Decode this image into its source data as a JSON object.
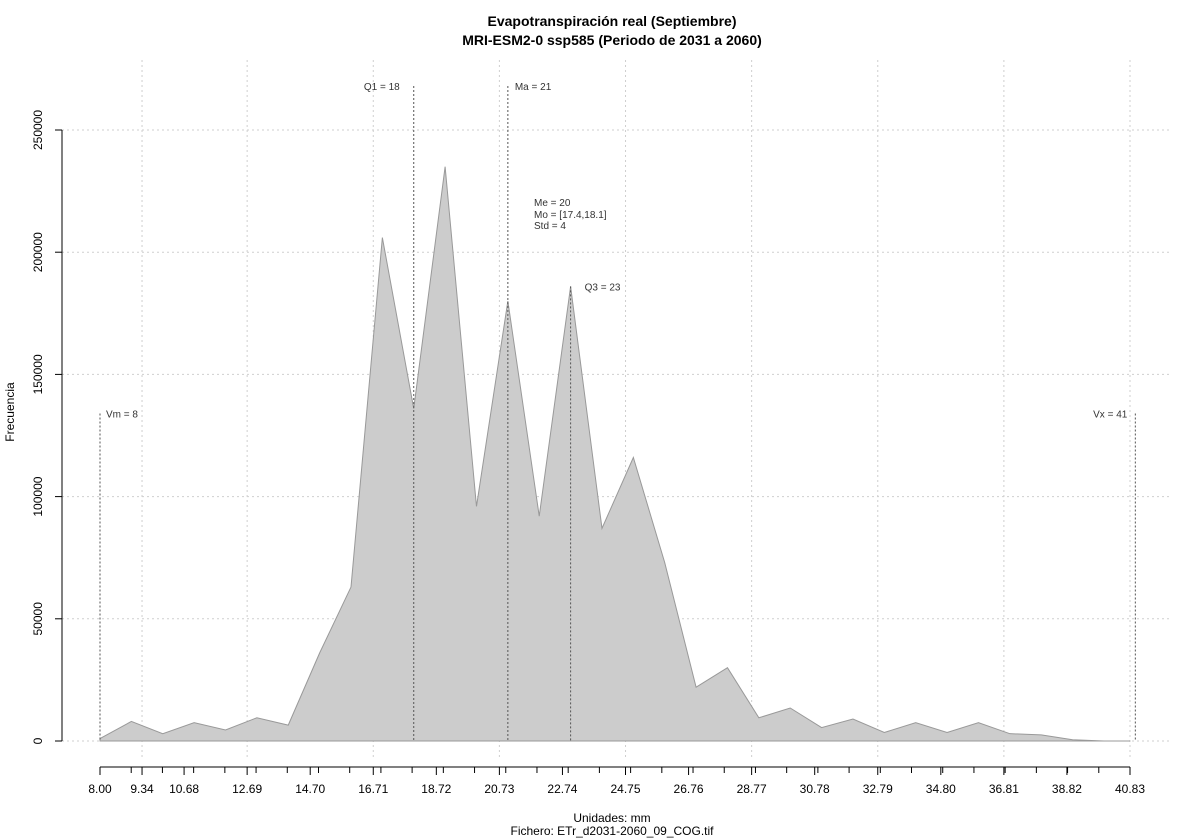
{
  "chart_data": {
    "type": "area",
    "title": "Evapotranspiración real (Septiembre)",
    "subtitle": "MRI-ESM2-0 ssp585 (Periodo de 2031 a 2060)",
    "xlabel": "Unidades: mm",
    "caption": "Fichero: ETr_d2031-2060_09_COG.tif",
    "ylabel": "Frecuencia",
    "xlim": [
      8.0,
      40.83
    ],
    "ylim": [
      0,
      250000
    ],
    "grid": true,
    "fill_color": "#cccccc",
    "line_color": "#999999",
    "x_ticks": [
      "8.00",
      "9.34",
      "10.68",
      "12.69",
      "14.70",
      "16.71",
      "18.72",
      "20.73",
      "22.74",
      "24.75",
      "26.76",
      "28.77",
      "30.78",
      "32.79",
      "34.80",
      "36.81",
      "38.82",
      "40.83"
    ],
    "y_ticks": [
      "0",
      "50000",
      "100000",
      "150000",
      "200000",
      "250000"
    ],
    "series": [
      {
        "x": [
          8.0,
          9.0,
          10.0,
          11.0,
          12.0,
          13.0,
          14.0,
          15.0,
          16.0,
          17.0,
          18.0,
          19.0,
          20.0,
          21.0,
          22.0,
          23.0,
          24.0,
          25.0,
          26.0,
          27.0,
          28.0,
          29.0,
          30.0,
          31.0,
          32.0,
          33.0,
          34.0,
          35.0,
          36.0,
          37.0,
          38.0,
          39.0,
          40.0,
          40.83
        ],
        "values": [
          1000,
          8000,
          3000,
          7500,
          4500,
          9500,
          6500,
          36000,
          63000,
          206000,
          136000,
          235000,
          96000,
          180000,
          92000,
          186000,
          87000,
          116000,
          73000,
          22000,
          30000,
          9500,
          13500,
          5500,
          9000,
          3500,
          7500,
          3500,
          7500,
          3000,
          2500,
          500,
          0,
          0
        ]
      }
    ],
    "annotations": {
      "vm": {
        "label": "Vm = 8",
        "x": 8.0,
        "top": 134000
      },
      "q1": {
        "label": "Q1 = 18",
        "x": 18.0,
        "top": 268000
      },
      "ma": {
        "label": "Ma = 21",
        "x": 21.0,
        "top": 268000
      },
      "q3": {
        "label": "Q3 = 23",
        "x": 23.0,
        "top": 186000
      },
      "vx": {
        "label": "Vx = 41",
        "x": 41.0,
        "top": 134000
      },
      "stats": [
        "Me = 20",
        "Mo = [17.4,18.1]",
        "Std = 4"
      ]
    }
  }
}
